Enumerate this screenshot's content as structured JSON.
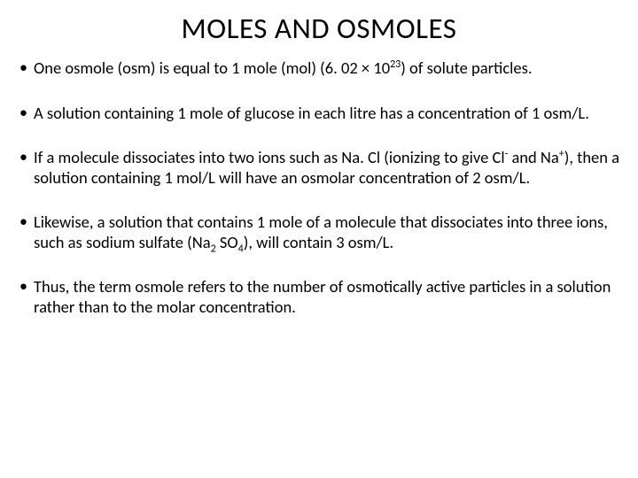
{
  "title": "MOLES AND OSMOLES",
  "bullets": {
    "b1": {
      "t1": "One osmole (osm) is equal to 1 mole (mol) (6. 02 × 10",
      "sup1": "23",
      "t2": ") of solute particles."
    },
    "b2": "A solution containing 1 mole of glucose in each litre has a concentration of 1 osm/L.",
    "b3": {
      "t1": "If a molecule dissociates into two ions such as Na. Cl (ionizing to give Cl",
      "sup1": "-",
      "t2": " and Na",
      "sup2": "+",
      "t3": "), then a solution containing 1 mol/L will have an osmolar concentration of 2 osm/L."
    },
    "b4": {
      "t1": "Likewise, a solution that contains 1 mole of a molecule that dissociates into three ions, such as sodium sulfate (Na",
      "sub1": "2",
      "t2": " SO",
      "sub2": "4",
      "t3": "), will contain 3 osm/L."
    },
    "b5": "Thus, the term osmole refers to the number of osmotically active particles in a solution rather than to the molar concentration."
  }
}
